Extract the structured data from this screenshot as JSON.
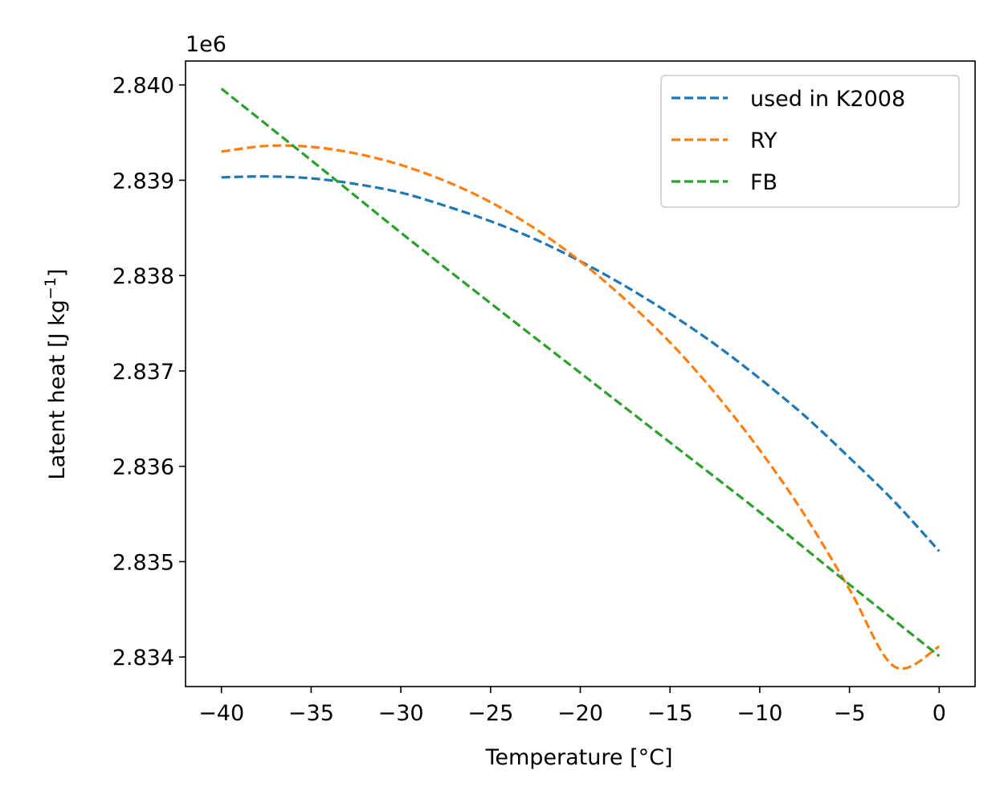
{
  "chart_data": {
    "type": "line",
    "title": "",
    "xlabel": "Temperature [°C]",
    "ylabel": "Latent heat [J kg",
    "ylabel_unit_superscript": "−1",
    "ylabel_close": "]",
    "y_offset_text": "1e6",
    "xlim": [
      -42,
      2
    ],
    "ylim": [
      2.83369,
      2.84025
    ],
    "x_ticks": [
      -40,
      -35,
      -30,
      -25,
      -20,
      -15,
      -10,
      -5,
      0
    ],
    "x_tick_labels": [
      "−40",
      "−35",
      "−30",
      "−25",
      "−20",
      "−15",
      "−10",
      "−5",
      "0"
    ],
    "y_ticks": [
      2.834,
      2.835,
      2.836,
      2.837,
      2.838,
      2.839,
      2.84
    ],
    "y_tick_labels": [
      "2.834",
      "2.835",
      "2.836",
      "2.837",
      "2.838",
      "2.839",
      "2.840"
    ],
    "grid": false,
    "legend_position": "top-right",
    "line_style": "dashed",
    "series": [
      {
        "name": "used in K2008",
        "color": "#1f77b4",
        "x": [
          -40,
          -37.5,
          -35,
          -32.5,
          -30,
          -27.5,
          -25,
          -22.5,
          -20,
          -17.5,
          -15,
          -12.5,
          -10,
          -7.5,
          -5,
          -2.5,
          0
        ],
        "values": [
          2.83903,
          2.83904,
          2.83902,
          2.83896,
          2.83887,
          2.83873,
          2.83857,
          2.83838,
          2.83815,
          2.83789,
          2.8376,
          2.83728,
          2.83692,
          2.83653,
          2.83609,
          2.83563,
          2.83511
        ]
      },
      {
        "name": "RY",
        "color": "#ff7f0e",
        "x": [
          -40,
          -37.5,
          -35,
          -32.5,
          -30,
          -27.5,
          -25,
          -22.5,
          -20,
          -17.5,
          -15,
          -12.5,
          -10,
          -7.5,
          -5,
          -2.5,
          0
        ],
        "values": [
          2.8393,
          2.83936,
          2.83935,
          2.83928,
          2.83916,
          2.83899,
          2.83877,
          2.83849,
          2.83815,
          2.83775,
          2.8373,
          2.83677,
          2.83617,
          2.83549,
          2.83471,
          2.8339,
          2.83411
        ]
      },
      {
        "name": "FB",
        "color": "#2ca02c",
        "x": [
          -40,
          -35,
          -30,
          -25,
          -20,
          -15,
          -10,
          -5,
          0
        ],
        "values": [
          2.83996,
          2.83921,
          2.83845,
          2.83771,
          2.83698,
          2.83625,
          2.83552,
          2.83476,
          2.83401
        ]
      }
    ]
  }
}
